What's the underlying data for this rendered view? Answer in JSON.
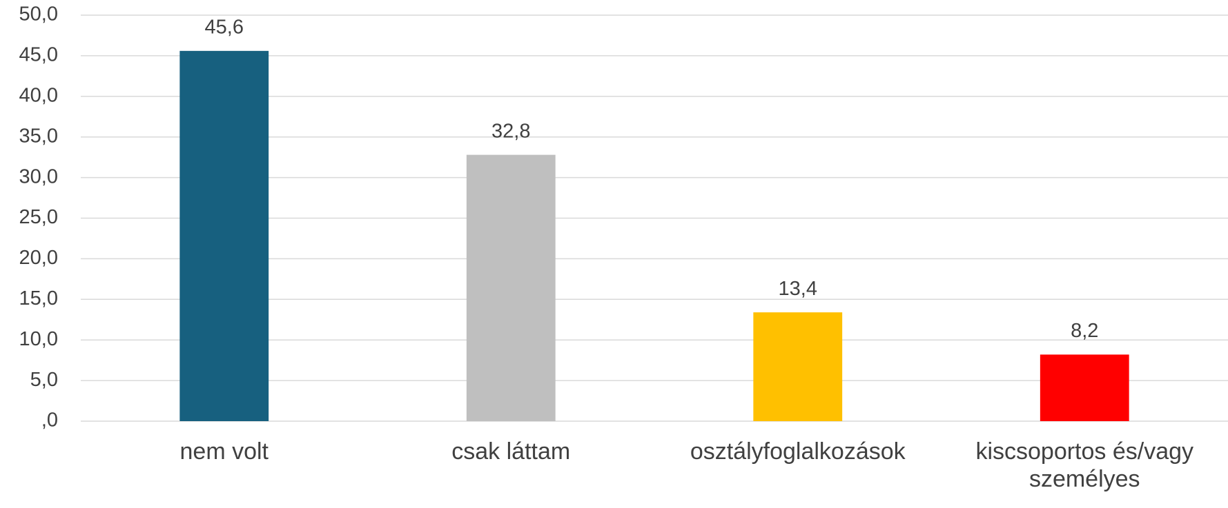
{
  "chart_data": {
    "type": "bar",
    "categories": [
      "nem volt",
      "csak láttam",
      "osztályfoglalkozások",
      "kiscsoportos és/vagy személyes"
    ],
    "values": [
      45.6,
      32.8,
      13.4,
      8.2
    ],
    "value_labels": [
      "45,6",
      "32,8",
      "13,4",
      "8,2"
    ],
    "colors": [
      "#17607f",
      "#bfbfbf",
      "#ffc000",
      "#ff0000"
    ],
    "ylim": [
      0,
      50
    ],
    "yticks": [
      {
        "value": 0,
        "label": ",0"
      },
      {
        "value": 5,
        "label": "5,0"
      },
      {
        "value": 10,
        "label": "10,0"
      },
      {
        "value": 15,
        "label": "15,0"
      },
      {
        "value": 20,
        "label": "20,0"
      },
      {
        "value": 25,
        "label": "25,0"
      },
      {
        "value": 30,
        "label": "30,0"
      },
      {
        "value": 35,
        "label": "35,0"
      },
      {
        "value": 40,
        "label": "40,0"
      },
      {
        "value": 45,
        "label": "45,0"
      },
      {
        "value": 50,
        "label": "50,0"
      }
    ],
    "grid": true
  }
}
